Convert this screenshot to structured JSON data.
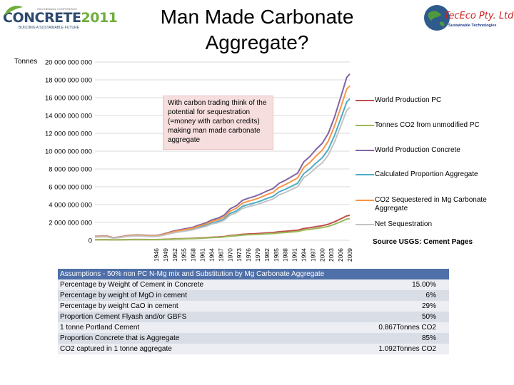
{
  "header": {
    "title_line1": "Man Made Carbonate",
    "title_line2": "Aggregate?"
  },
  "logo_left": {
    "brand": "CONCRETE",
    "year": "2011",
    "tagline": "BUILDING A SUSTAINABLE FUTURE",
    "small": "25th BIENNIAL CONFERENCE"
  },
  "logo_right": {
    "name": "TecEco Pty. Ltd.",
    "sub": "Sustainable Technologies"
  },
  "callout_text": "With carbon trading think of the potential for sequestration (=money with carbon credits) making man made carbonate aggregate",
  "source": "Source USGS: Cement Pages",
  "chart_data": {
    "type": "line",
    "ylabel": "Tonnes",
    "ylim": [
      0,
      20000000000
    ],
    "yticks": [
      0,
      2000000000,
      4000000000,
      6000000000,
      8000000000,
      10000000000,
      12000000000,
      14000000000,
      16000000000,
      18000000000,
      20000000000
    ],
    "ytick_labels": [
      "0",
      "2 000 000 000",
      "4 000 000 000",
      "6 000 000 000",
      "8 000 000 000",
      "10 000 000 000",
      "12 000 000 000",
      "14 000 000 000",
      "16 000 000 000",
      "18 000 000 000",
      "20 000 000 000"
    ],
    "x": [
      1926,
      1928,
      1930,
      1932,
      1934,
      1936,
      1938,
      1940,
      1942,
      1944,
      1946,
      1948,
      1950,
      1952,
      1954,
      1956,
      1958,
      1960,
      1962,
      1964,
      1966,
      1968,
      1970,
      1972,
      1974,
      1976,
      1978,
      1980,
      1982,
      1984,
      1986,
      1988,
      1990,
      1992,
      1994,
      1996,
      1998,
      2000,
      2002,
      2004,
      2006,
      2008,
      2009
    ],
    "xtick_labels": [
      "1946",
      "1949",
      "1952",
      "1955",
      "1958",
      "1961",
      "1964",
      "1967",
      "1970",
      "1973",
      "1976",
      "1979",
      "1982",
      "1985",
      "1988",
      "1991",
      "1994",
      "1997",
      "2000",
      "2003",
      "2006",
      "2009"
    ],
    "legend_position": "right",
    "series": [
      {
        "name": "World Production PC",
        "color": "#c0504d",
        "values": [
          0.066,
          0.07,
          0.07,
          0.045,
          0.055,
          0.075,
          0.085,
          0.09,
          0.085,
          0.08,
          0.08,
          0.1,
          0.13,
          0.16,
          0.18,
          0.2,
          0.22,
          0.26,
          0.29,
          0.34,
          0.37,
          0.42,
          0.53,
          0.58,
          0.67,
          0.71,
          0.74,
          0.78,
          0.83,
          0.87,
          0.96,
          1.01,
          1.07,
          1.13,
          1.32,
          1.41,
          1.53,
          1.63,
          1.8,
          2.07,
          2.4,
          2.74,
          2.8
        ]
      },
      {
        "name": "Tonnes CO2 from unmodified PC",
        "color": "#9bbb59",
        "values": [
          0.057,
          0.061,
          0.061,
          0.039,
          0.048,
          0.065,
          0.074,
          0.078,
          0.074,
          0.069,
          0.069,
          0.087,
          0.113,
          0.139,
          0.156,
          0.173,
          0.191,
          0.225,
          0.251,
          0.295,
          0.321,
          0.364,
          0.46,
          0.503,
          0.581,
          0.616,
          0.641,
          0.676,
          0.72,
          0.754,
          0.832,
          0.876,
          0.928,
          0.98,
          1.144,
          1.222,
          1.327,
          1.413,
          1.561,
          1.795,
          2.081,
          2.376,
          2.43
        ]
      },
      {
        "name": "World Production Concrete",
        "color": "#8064a2",
        "values": [
          0.44,
          0.47,
          0.47,
          0.3,
          0.37,
          0.5,
          0.57,
          0.6,
          0.57,
          0.53,
          0.53,
          0.67,
          0.87,
          1.07,
          1.2,
          1.33,
          1.47,
          1.73,
          1.93,
          2.27,
          2.47,
          2.8,
          3.53,
          3.87,
          4.47,
          4.73,
          4.93,
          5.2,
          5.53,
          5.8,
          6.4,
          6.73,
          7.13,
          7.53,
          8.8,
          9.4,
          10.2,
          10.87,
          12.0,
          13.8,
          16.0,
          18.27,
          18.67
        ]
      },
      {
        "name": "Calculated Proportion Aggregate",
        "color": "#4bacc6",
        "values": [
          0.374,
          0.4,
          0.4,
          0.255,
          0.315,
          0.425,
          0.485,
          0.51,
          0.485,
          0.45,
          0.45,
          0.57,
          0.74,
          0.91,
          1.02,
          1.13,
          1.25,
          1.47,
          1.64,
          1.93,
          2.1,
          2.38,
          3.0,
          3.29,
          3.8,
          4.02,
          4.19,
          4.42,
          4.7,
          4.93,
          5.44,
          5.72,
          6.06,
          6.4,
          7.48,
          7.99,
          8.67,
          9.24,
          10.2,
          11.73,
          13.6,
          15.53,
          15.87
        ]
      },
      {
        "name": "CO2 Sequestered in Mg Carbonate Aggregate",
        "color": "#f79646",
        "values": [
          0.408,
          0.437,
          0.437,
          0.278,
          0.344,
          0.464,
          0.53,
          0.557,
          0.53,
          0.491,
          0.491,
          0.622,
          0.808,
          0.994,
          1.114,
          1.234,
          1.365,
          1.605,
          1.791,
          2.108,
          2.293,
          2.599,
          3.276,
          3.593,
          4.15,
          4.39,
          4.576,
          4.827,
          5.132,
          5.384,
          5.94,
          6.246,
          6.618,
          6.989,
          8.168,
          8.725,
          9.468,
          10.09,
          11.14,
          12.81,
          14.85,
          16.96,
          17.33
        ]
      },
      {
        "name": "Net Sequestration",
        "color": "#c3c3c3",
        "values": [
          0.351,
          0.376,
          0.376,
          0.239,
          0.296,
          0.399,
          0.456,
          0.479,
          0.456,
          0.422,
          0.422,
          0.535,
          0.695,
          0.855,
          0.958,
          1.061,
          1.174,
          1.38,
          1.54,
          1.813,
          1.972,
          2.235,
          2.816,
          3.09,
          3.569,
          3.774,
          3.935,
          4.151,
          4.412,
          4.63,
          5.108,
          5.37,
          5.69,
          6.009,
          7.024,
          7.503,
          8.141,
          8.677,
          9.579,
          11.015,
          12.769,
          14.584,
          14.9
        ]
      }
    ],
    "values_unit_note": "values in billions of tonnes"
  },
  "assumptions": {
    "header": "Assumptions - 50% non PC N-Mg mix and Substitution by Mg Carbonate Aggregate",
    "rows": [
      {
        "label": "Percentage by Weight of Cement in Concrete",
        "value": "15.00%"
      },
      {
        "label": "Percentage by weight of MgO in cement",
        "value": "6%"
      },
      {
        "label": "Percentage by weight CaO in cement",
        "value": "29%"
      },
      {
        "label": "Proportion Cement Flyash and/or GBFS",
        "value": "50%"
      },
      {
        "label": "1 tonne Portland Cement",
        "value": "0.867Tonnes CO2"
      },
      {
        "label": "Proportion Concrete that is Aggregate",
        "value": "85%"
      },
      {
        "label": "CO2 captured in 1 tonne aggregate",
        "value": "1.092Tonnes CO2"
      }
    ]
  }
}
